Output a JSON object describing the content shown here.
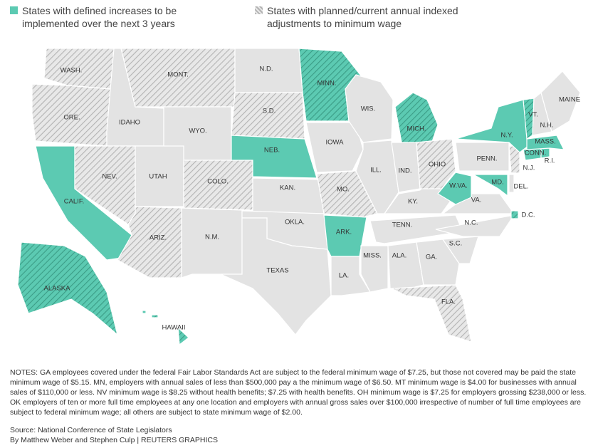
{
  "legend": [
    {
      "label": "States with defined increases to be implemented over the next 3 years",
      "style": "increase"
    },
    {
      "label": "States with planned/current annual indexed adjustments to minimum wage",
      "style": "indexed"
    }
  ],
  "fills": {
    "increase": "#5ccab2",
    "none": "#e3e3e3",
    "indexed_base": "#e8e8e8",
    "indexed_line": "#b3b3b3",
    "both_line": "#3b9c86",
    "border": "#ffffff"
  },
  "states": [
    {
      "label": "WASH.",
      "style": "indexed"
    },
    {
      "label": "ORE.",
      "style": "indexed"
    },
    {
      "label": "IDAHO",
      "style": "none"
    },
    {
      "label": "MONT.",
      "style": "indexed"
    },
    {
      "label": "WYO.",
      "style": "none"
    },
    {
      "label": "CALIF.",
      "style": "increase"
    },
    {
      "label": "NEV.",
      "style": "indexed"
    },
    {
      "label": "UTAH",
      "style": "none"
    },
    {
      "label": "COLO.",
      "style": "indexed"
    },
    {
      "label": "ARIZ.",
      "style": "indexed"
    },
    {
      "label": "N.M.",
      "style": "none"
    },
    {
      "label": "N.D.",
      "style": "none"
    },
    {
      "label": "S.D.",
      "style": "indexed"
    },
    {
      "label": "NEB.",
      "style": "increase"
    },
    {
      "label": "KAN.",
      "style": "none"
    },
    {
      "label": "OKLA.",
      "style": "none"
    },
    {
      "label": "TEXAS",
      "style": "none"
    },
    {
      "label": "MINN.",
      "style": "both"
    },
    {
      "label": "IOWA",
      "style": "none"
    },
    {
      "label": "MO.",
      "style": "indexed"
    },
    {
      "label": "ARK.",
      "style": "increase"
    },
    {
      "label": "LA.",
      "style": "none"
    },
    {
      "label": "WIS.",
      "style": "none"
    },
    {
      "label": "ILL.",
      "style": "none"
    },
    {
      "label": "MICH.",
      "style": "both"
    },
    {
      "label": "MISS.",
      "style": "none"
    },
    {
      "label": "IND.",
      "style": "none"
    },
    {
      "label": "KY.",
      "style": "none"
    },
    {
      "label": "TENN.",
      "style": "none"
    },
    {
      "label": "ALA.",
      "style": "none"
    },
    {
      "label": "GA.",
      "style": "none"
    },
    {
      "label": "FLA.",
      "style": "indexed"
    },
    {
      "label": "S.C.",
      "style": "none"
    },
    {
      "label": "N.C.",
      "style": "none"
    },
    {
      "label": "VA.",
      "style": "none"
    },
    {
      "label": "W.VA.",
      "style": "increase"
    },
    {
      "label": "OHIO",
      "style": "indexed"
    },
    {
      "label": "PENN.",
      "style": "none"
    },
    {
      "label": "MD.",
      "style": "increase"
    },
    {
      "label": "DEL.",
      "style": "none"
    },
    {
      "label": "N.J.",
      "style": "indexed"
    },
    {
      "label": "N.Y.",
      "style": "increase"
    },
    {
      "label": "CONN.",
      "style": "increase"
    },
    {
      "label": "R.I.",
      "style": "increase"
    },
    {
      "label": "MASS.",
      "style": "increase"
    },
    {
      "label": "VT.",
      "style": "both"
    },
    {
      "label": "N.H.",
      "style": "none"
    },
    {
      "label": "MAINE",
      "style": "none"
    },
    {
      "label": "ALASKA",
      "style": "both"
    },
    {
      "label": "HAWAII",
      "style": "both"
    },
    {
      "label": "D.C.",
      "style": "both"
    }
  ],
  "notes": "NOTES: GA employees covered under the federal Fair Labor Standards Act are subject to the federal minimum wage of $7.25, but those not covered may be paid the state minimum wage of $5.15. MN, employers with annual sales of less than $500,000 pay a the minimum wage of $6.50. MT minimum wage is $4.00 for businesses with annual sales of $110,000 or less. NV minimum wage is $8.25 without health benefits; $7.25 with health benefits. OH minimum wage is $7.25 for employers grossing $238,000 or less. OK employers of ten or more full time employees at any one location and employers with annual gross sales over $100,000 irrespective of number of full time employees are subject to federal minimum wage; all others are subject to state minimum wage of $2.00.",
  "source": "Source: National Conference of State Legislators",
  "credit": "By Matthew Weber and Stephen Culp | REUTERS GRAPHICS"
}
